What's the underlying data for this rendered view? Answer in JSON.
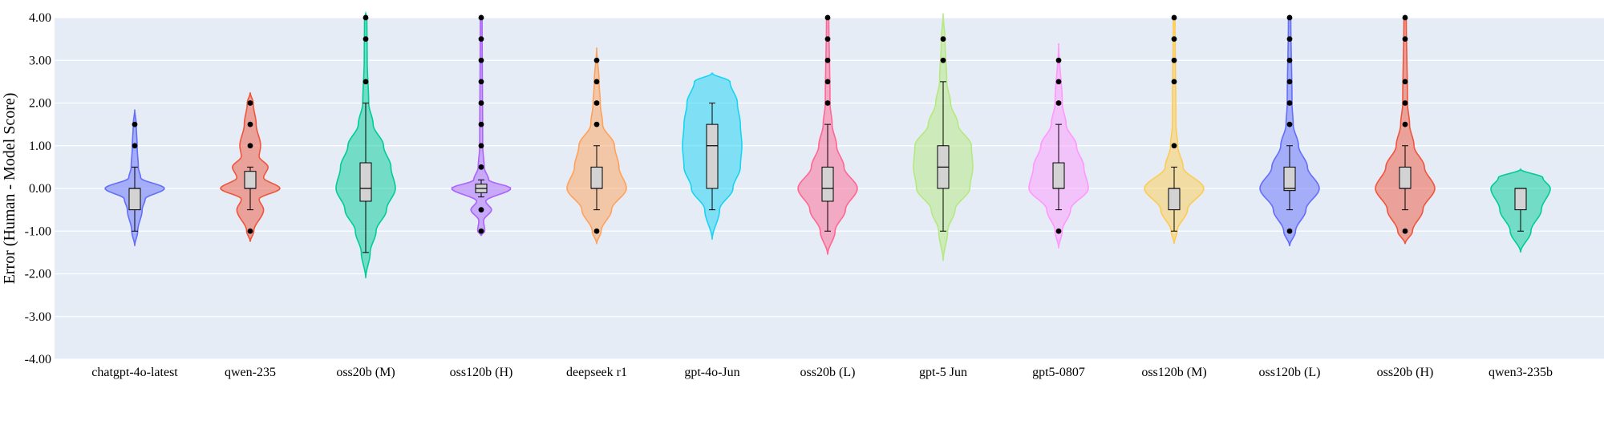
{
  "chart_data": {
    "type": "violin",
    "title": "",
    "xlabel": "",
    "ylabel": "Error (Human - Model Score)",
    "ylim": [
      -4.0,
      4.0
    ],
    "yticks": [
      -4.0,
      -3.0,
      -2.0,
      -1.0,
      0.0,
      1.0,
      2.0,
      3.0,
      4.0
    ],
    "ytick_labels": [
      "-4.00",
      "-3.00",
      "-2.00",
      "-1.00",
      "0.00",
      "1.00",
      "2.00",
      "3.00",
      "4.00"
    ],
    "grid": true,
    "background": "#E5ECF6",
    "series": [
      {
        "name": "chatgpt-4o-latest",
        "color": "#636EFA",
        "box": {
          "q1": -0.5,
          "median": 0.0,
          "q3": 0.0,
          "whisker_low": -1.0,
          "whisker_high": 0.5
        },
        "outliers": [
          1.0,
          1.5
        ],
        "density": [
          [
            -1.35,
            0.0
          ],
          [
            -1.0,
            0.1
          ],
          [
            -0.5,
            0.25
          ],
          [
            -0.25,
            0.35
          ],
          [
            0.0,
            1.0
          ],
          [
            0.25,
            0.2
          ],
          [
            0.5,
            0.12
          ],
          [
            1.0,
            0.08
          ],
          [
            1.5,
            0.05
          ],
          [
            1.85,
            0.0
          ]
        ]
      },
      {
        "name": "qwen-235",
        "color": "#EF553B",
        "box": {
          "q1": 0.0,
          "median": 0.0,
          "q3": 0.4,
          "whisker_low": -0.5,
          "whisker_high": 0.5
        },
        "outliers": [
          -1.0,
          1.0,
          1.5,
          2.0
        ],
        "density": [
          [
            -1.25,
            0.0
          ],
          [
            -1.0,
            0.12
          ],
          [
            -0.5,
            0.45
          ],
          [
            -0.25,
            0.3
          ],
          [
            0.0,
            1.0
          ],
          [
            0.25,
            0.45
          ],
          [
            0.5,
            0.6
          ],
          [
            0.75,
            0.3
          ],
          [
            1.0,
            0.35
          ],
          [
            1.5,
            0.2
          ],
          [
            2.0,
            0.1
          ],
          [
            2.25,
            0.0
          ]
        ]
      },
      {
        "name": "oss20b (M)",
        "color": "#00CC96",
        "box": {
          "q1": -0.3,
          "median": 0.0,
          "q3": 0.6,
          "whisker_low": -1.5,
          "whisker_high": 2.0
        },
        "outliers": [
          2.5,
          3.5,
          4.0
        ],
        "density": [
          [
            -2.1,
            0.0
          ],
          [
            -1.5,
            0.15
          ],
          [
            -1.0,
            0.35
          ],
          [
            -0.5,
            0.7
          ],
          [
            0.0,
            1.0
          ],
          [
            0.5,
            0.85
          ],
          [
            1.0,
            0.6
          ],
          [
            1.5,
            0.25
          ],
          [
            2.0,
            0.1
          ],
          [
            3.0,
            0.05
          ],
          [
            4.0,
            0.04
          ],
          [
            4.1,
            0.0
          ]
        ]
      },
      {
        "name": "oss120b (H)",
        "color": "#AB63FA",
        "box": {
          "q1": -0.1,
          "median": 0.0,
          "q3": 0.1,
          "whisker_low": -0.2,
          "whisker_high": 0.2
        },
        "outliers": [
          -1.0,
          -0.5,
          0.5,
          1.0,
          1.5,
          2.0,
          2.5,
          3.0,
          3.5,
          4.0
        ],
        "density": [
          [
            -1.1,
            0.0
          ],
          [
            -1.0,
            0.12
          ],
          [
            -0.75,
            0.08
          ],
          [
            -0.5,
            0.35
          ],
          [
            -0.3,
            0.15
          ],
          [
            0.0,
            1.0
          ],
          [
            0.2,
            0.25
          ],
          [
            0.5,
            0.1
          ],
          [
            1.0,
            0.05
          ],
          [
            4.0,
            0.03
          ],
          [
            4.05,
            0.0
          ]
        ]
      },
      {
        "name": "deepseek r1",
        "color": "#FFA15A",
        "box": {
          "q1": 0.0,
          "median": 0.0,
          "q3": 0.5,
          "whisker_low": -0.5,
          "whisker_high": 1.0
        },
        "outliers": [
          -1.0,
          1.5,
          2.0,
          2.5,
          3.0
        ],
        "density": [
          [
            -1.3,
            0.0
          ],
          [
            -1.0,
            0.15
          ],
          [
            -0.5,
            0.5
          ],
          [
            0.0,
            1.0
          ],
          [
            0.5,
            0.75
          ],
          [
            1.0,
            0.6
          ],
          [
            1.5,
            0.2
          ],
          [
            2.0,
            0.12
          ],
          [
            2.5,
            0.08
          ],
          [
            3.3,
            0.0
          ]
        ]
      },
      {
        "name": "gpt-4o-Jun",
        "color": "#19D3F3",
        "box": {
          "q1": 0.0,
          "median": 1.0,
          "q3": 1.5,
          "whisker_low": -0.5,
          "whisker_high": 2.0
        },
        "outliers": [],
        "density": [
          [
            -1.2,
            0.0
          ],
          [
            -0.5,
            0.25
          ],
          [
            0.0,
            0.7
          ],
          [
            0.5,
            0.95
          ],
          [
            1.0,
            1.0
          ],
          [
            1.5,
            0.95
          ],
          [
            2.0,
            0.85
          ],
          [
            2.5,
            0.6
          ],
          [
            2.7,
            0.0
          ]
        ]
      },
      {
        "name": "oss20b (L)",
        "color": "#FF6692",
        "box": {
          "q1": -0.3,
          "median": 0.0,
          "q3": 0.5,
          "whisker_low": -1.0,
          "whisker_high": 1.5
        },
        "outliers": [
          2.0,
          2.5,
          3.0,
          3.5,
          4.0
        ],
        "density": [
          [
            -1.55,
            0.0
          ],
          [
            -1.0,
            0.25
          ],
          [
            -0.5,
            0.6
          ],
          [
            0.0,
            1.0
          ],
          [
            0.5,
            0.55
          ],
          [
            1.0,
            0.3
          ],
          [
            1.5,
            0.15
          ],
          [
            2.0,
            0.08
          ],
          [
            4.0,
            0.04
          ],
          [
            4.05,
            0.0
          ]
        ]
      },
      {
        "name": "gpt-5 Jun",
        "color": "#B6E880",
        "box": {
          "q1": 0.0,
          "median": 0.5,
          "q3": 1.0,
          "whisker_low": -1.0,
          "whisker_high": 2.5
        },
        "outliers": [
          3.0,
          3.5
        ],
        "density": [
          [
            -1.7,
            0.0
          ],
          [
            -1.0,
            0.15
          ],
          [
            -0.5,
            0.4
          ],
          [
            0.0,
            0.9
          ],
          [
            0.5,
            1.0
          ],
          [
            1.0,
            0.95
          ],
          [
            1.5,
            0.5
          ],
          [
            2.0,
            0.25
          ],
          [
            2.5,
            0.12
          ],
          [
            3.5,
            0.06
          ],
          [
            4.1,
            0.0
          ]
        ]
      },
      {
        "name": "gpt5-0807",
        "color": "#FF97FF",
        "box": {
          "q1": 0.0,
          "median": 0.0,
          "q3": 0.6,
          "whisker_low": -0.5,
          "whisker_high": 1.5
        },
        "outliers": [
          -1.0,
          2.0,
          2.5,
          3.0
        ],
        "density": [
          [
            -1.4,
            0.0
          ],
          [
            -1.0,
            0.12
          ],
          [
            -0.5,
            0.4
          ],
          [
            0.0,
            1.0
          ],
          [
            0.5,
            0.85
          ],
          [
            1.0,
            0.6
          ],
          [
            1.5,
            0.25
          ],
          [
            2.0,
            0.12
          ],
          [
            3.4,
            0.0
          ]
        ]
      },
      {
        "name": "oss120b (M)",
        "color": "#FECB52",
        "box": {
          "q1": -0.5,
          "median": 0.0,
          "q3": 0.0,
          "whisker_low": -1.0,
          "whisker_high": 0.5
        },
        "outliers": [
          1.0,
          2.5,
          3.0,
          3.5,
          4.0
        ],
        "density": [
          [
            -1.3,
            0.0
          ],
          [
            -1.0,
            0.1
          ],
          [
            -0.5,
            0.45
          ],
          [
            0.0,
            1.0
          ],
          [
            0.5,
            0.3
          ],
          [
            1.0,
            0.12
          ],
          [
            1.5,
            0.06
          ],
          [
            4.0,
            0.03
          ],
          [
            4.05,
            0.0
          ]
        ]
      },
      {
        "name": "oss120b (L)",
        "color": "#636EFA",
        "box": {
          "q1": -0.05,
          "median": 0.0,
          "q3": 0.5,
          "whisker_low": -0.5,
          "whisker_high": 1.0
        },
        "outliers": [
          -1.0,
          1.5,
          2.0,
          2.5,
          3.0,
          3.5,
          4.0
        ],
        "density": [
          [
            -1.35,
            0.0
          ],
          [
            -1.0,
            0.2
          ],
          [
            -0.5,
            0.55
          ],
          [
            0.0,
            1.0
          ],
          [
            0.5,
            0.6
          ],
          [
            1.0,
            0.3
          ],
          [
            1.5,
            0.12
          ],
          [
            2.0,
            0.08
          ],
          [
            4.0,
            0.04
          ],
          [
            4.05,
            0.0
          ]
        ]
      },
      {
        "name": "oss20b (H)",
        "color": "#EF553B",
        "box": {
          "q1": 0.0,
          "median": 0.0,
          "q3": 0.5,
          "whisker_low": -0.5,
          "whisker_high": 1.0
        },
        "outliers": [
          -1.0,
          1.5,
          2.0,
          2.5,
          3.5,
          4.0
        ],
        "density": [
          [
            -1.3,
            0.0
          ],
          [
            -1.0,
            0.25
          ],
          [
            -0.5,
            0.6
          ],
          [
            0.0,
            1.0
          ],
          [
            0.5,
            0.65
          ],
          [
            1.0,
            0.3
          ],
          [
            1.5,
            0.15
          ],
          [
            2.0,
            0.08
          ],
          [
            4.0,
            0.04
          ],
          [
            4.05,
            0.0
          ]
        ]
      },
      {
        "name": "qwen3-235b",
        "color": "#00CC96",
        "box": {
          "q1": -0.5,
          "median": 0.0,
          "q3": 0.0,
          "whisker_low": -1.0,
          "whisker_high": 0.0
        },
        "outliers": [],
        "density": [
          [
            -1.5,
            0.0
          ],
          [
            -1.0,
            0.35
          ],
          [
            -0.5,
            0.7
          ],
          [
            0.0,
            1.0
          ],
          [
            0.25,
            0.75
          ],
          [
            0.45,
            0.0
          ]
        ]
      }
    ]
  }
}
